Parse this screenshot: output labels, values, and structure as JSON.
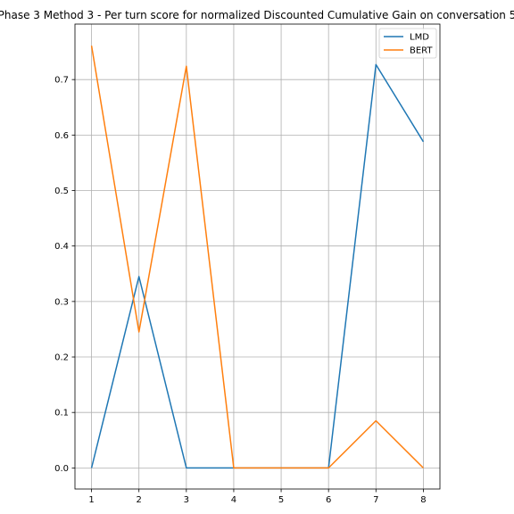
{
  "chart_data": {
    "type": "line",
    "title": "Phase 3 Method 3 - Per turn score for normalized Discounted Cumulative Gain on conversation 5",
    "xlabel": "",
    "ylabel": "",
    "x": [
      1,
      2,
      3,
      4,
      5,
      6,
      7,
      8
    ],
    "xlim": [
      0.65,
      8.35
    ],
    "ylim": [
      -0.038,
      0.8
    ],
    "xticks": [
      "1",
      "2",
      "3",
      "4",
      "5",
      "6",
      "7",
      "8"
    ],
    "yticks": [
      "0.0",
      "0.1",
      "0.2",
      "0.3",
      "0.4",
      "0.5",
      "0.6",
      "0.7"
    ],
    "grid": true,
    "legend_position": "top-right",
    "series": [
      {
        "name": "LMD",
        "color": "#1f77b4",
        "values": [
          0.0,
          0.345,
          0.0,
          0.0,
          0.0,
          0.0,
          0.727,
          0.588
        ]
      },
      {
        "name": "BERT",
        "color": "#ff7f0e",
        "values": [
          0.761,
          0.245,
          0.724,
          0.0,
          0.0,
          0.0,
          0.085,
          0.0
        ]
      }
    ]
  }
}
